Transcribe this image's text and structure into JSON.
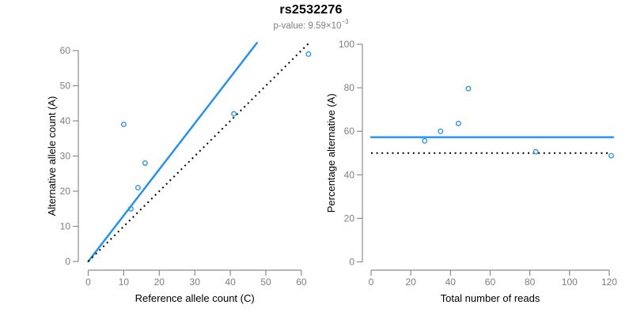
{
  "header": {
    "title": "rs2532276",
    "p_value_main": "p-value: 9.59×10",
    "p_value_exponent": "−3"
  },
  "colors": {
    "accent": "#1e8fff",
    "dotted": "#000000",
    "axis_line": "#8c8c8c",
    "tick_label": "#7e7e7e",
    "axis_title": "#000000"
  },
  "chart_data": [
    {
      "type": "scatter",
      "panel": "allele-counts",
      "xlabel": "Reference allele count (C)",
      "ylabel": "Alternative allele count (A)",
      "xlim": [
        0,
        62.5
      ],
      "ylim": [
        0,
        62.5
      ],
      "xticks": [
        0,
        10,
        20,
        30,
        40,
        50,
        60
      ],
      "yticks": [
        0,
        10,
        20,
        30,
        40,
        50,
        60
      ],
      "grid": false,
      "points": [
        [
          10,
          39
        ],
        [
          12,
          15
        ],
        [
          14,
          21
        ],
        [
          16,
          28
        ],
        [
          41,
          42
        ],
        [
          62,
          59
        ]
      ],
      "lines": [
        {
          "name": "fitted-proportion-line",
          "style": "solid",
          "color_key": "accent",
          "x": [
            0,
            47.5
          ],
          "y": [
            0,
            62.2
          ]
        },
        {
          "name": "identity-50pct-line",
          "style": "dotted",
          "color_key": "dotted",
          "x": [
            0,
            62.5
          ],
          "y": [
            0,
            62.5
          ]
        }
      ]
    },
    {
      "type": "scatter",
      "panel": "percentage-vs-reads",
      "xlabel": "Total number of reads",
      "ylabel": "Percentage alternative (A)",
      "xlim": [
        0,
        122
      ],
      "ylim": [
        0,
        100
      ],
      "xticks": [
        0,
        20,
        40,
        60,
        80,
        100,
        120
      ],
      "yticks": [
        0,
        20,
        40,
        60,
        80,
        100
      ],
      "grid": false,
      "points": [
        [
          49,
          79.6
        ],
        [
          27,
          55.6
        ],
        [
          35,
          60.0
        ],
        [
          44,
          63.6
        ],
        [
          83,
          50.6
        ],
        [
          121,
          48.8
        ]
      ],
      "lines": [
        {
          "name": "mean-percentage-line",
          "style": "solid",
          "color_key": "accent",
          "x": [
            0,
            122
          ],
          "y": [
            57.3,
            57.3
          ]
        },
        {
          "name": "reference-50pct-line",
          "style": "dotted",
          "color_key": "dotted",
          "x": [
            0,
            119.5
          ],
          "y": [
            50,
            50
          ]
        }
      ]
    }
  ]
}
